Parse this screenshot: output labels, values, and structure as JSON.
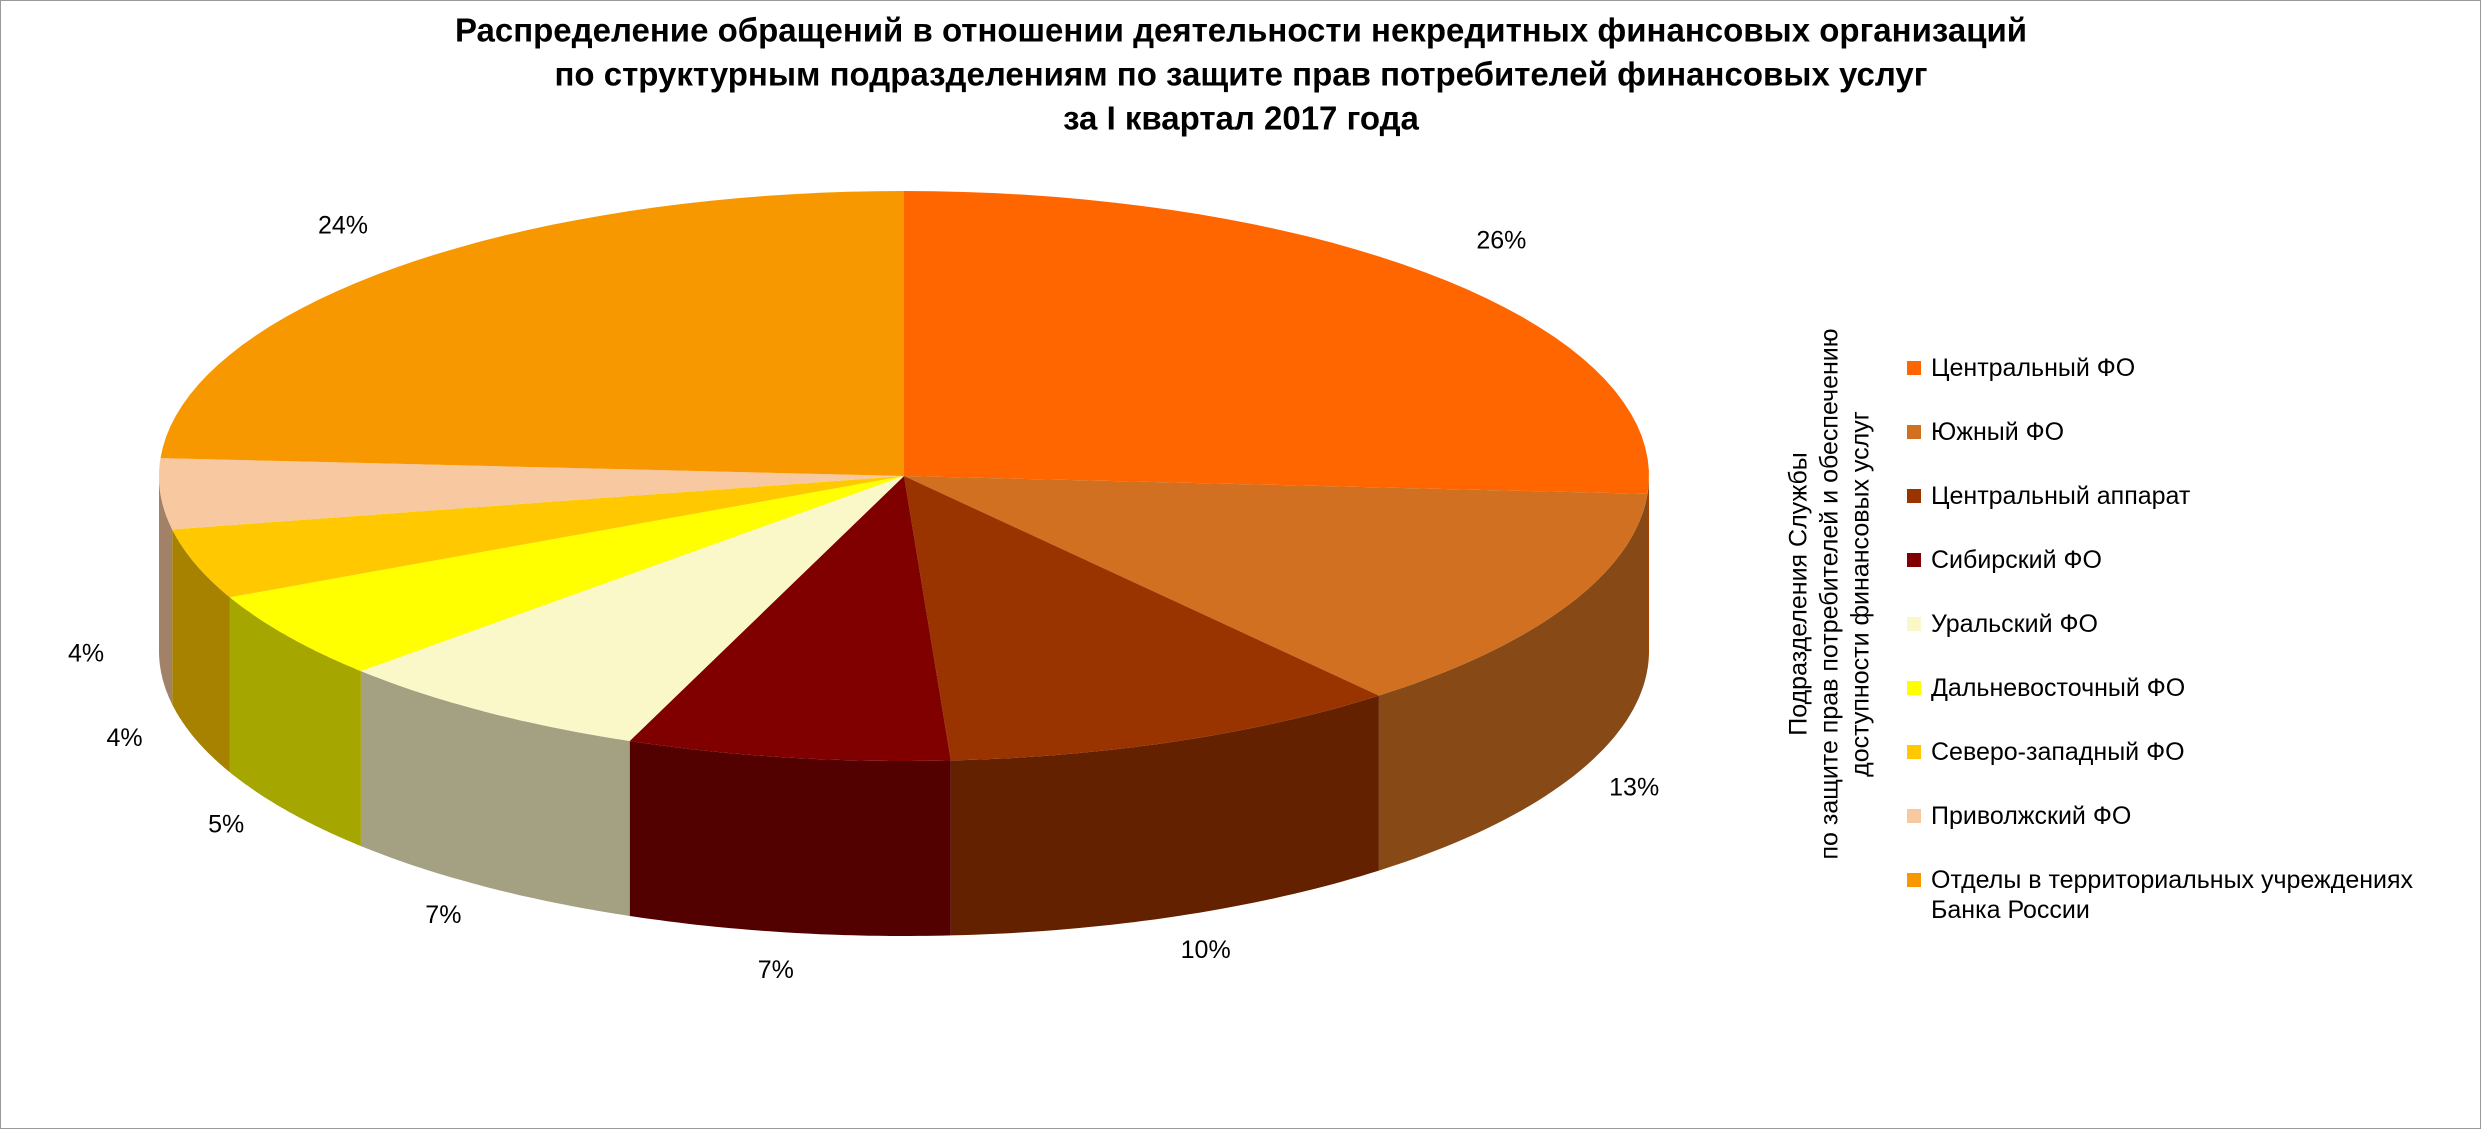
{
  "chart_data": {
    "type": "pie3d",
    "title": [
      "Распределение обращений в отношении деятельности некредитных финансовых организаций",
      "по структурным подразделениям  по защите прав потребителей финансовых услуг",
      "за I квартал 2017 года"
    ],
    "legend_title": [
      "Подразделения Службы",
      "по защите прав потребителей и обеспечению",
      "доступности финансовых  услуг"
    ],
    "categories": [
      "Центральный ФО",
      "Южный ФО",
      "Центральный аппарат",
      "Сибирский ФО",
      "Уральский ФО",
      "Дальневосточный ФО",
      "Северо-западный ФО",
      "Приволжский ФО",
      "Отделы в территориальных учреждениях Банка России"
    ],
    "values": [
      26,
      13,
      10,
      7,
      7,
      5,
      4,
      4,
      24
    ],
    "value_labels": [
      "26%",
      "13%",
      "10%",
      "7%",
      "7%",
      "5%",
      "4%",
      "4%",
      "24%"
    ],
    "colors": [
      "#FF6600",
      "#D07020",
      "#993300",
      "#800000",
      "#FAF8C8",
      "#FFFF00",
      "#FFC800",
      "#F8C8A0",
      "#F89800"
    ],
    "legend": "right"
  }
}
